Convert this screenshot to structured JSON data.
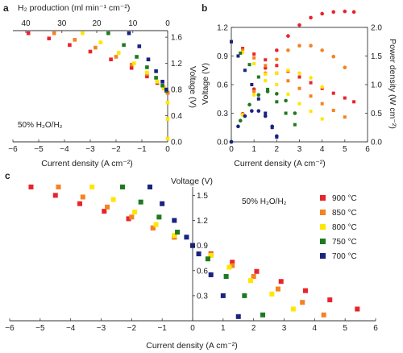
{
  "chart_data": [
    {
      "panel": "a",
      "type": "scatter",
      "note": "50% H₂O/H₂",
      "xlabel": "Current density (A cm⁻²)",
      "ylabel": "Voltage (V)",
      "top_xlabel": "H₂ production (ml min⁻¹ cm⁻²)",
      "xlim": [
        -6,
        0
      ],
      "ylim": [
        0,
        1.7
      ],
      "xticks": [
        "−6",
        "−5",
        "−4",
        "−3",
        "−2",
        "−1",
        "0"
      ],
      "yticks": [
        "0.0",
        "0.4",
        "0.8",
        "1.2",
        "1.6"
      ],
      "top_ticks": [
        "40",
        "30",
        "20",
        "10",
        "0"
      ],
      "series": [
        {
          "name": "900 °C",
          "color": "#e8242b",
          "x": [
            -5.4,
            -4.6,
            -3.8,
            -3.0,
            -2.2,
            -1.4,
            -0.8,
            -0.4,
            -0.15,
            0.0
          ],
          "y": [
            1.66,
            1.58,
            1.48,
            1.38,
            1.26,
            1.13,
            1.0,
            0.9,
            0.82,
            0.75
          ]
        },
        {
          "name": "850 °C",
          "color": "#f58220",
          "x": [
            -4.4,
            -3.6,
            -2.8,
            -2.0,
            -1.4,
            -0.8,
            -0.4,
            -0.15,
            0.0
          ],
          "y": [
            1.66,
            1.56,
            1.44,
            1.3,
            1.18,
            1.04,
            0.92,
            0.83,
            0.75
          ]
        },
        {
          "name": "800 °C",
          "color": "#ffe600",
          "x": [
            -3.3,
            -2.6,
            -1.9,
            -1.3,
            -0.8,
            -0.4,
            -0.15,
            0.0,
            0.0,
            0.0
          ],
          "y": [
            1.66,
            1.52,
            1.36,
            1.2,
            1.06,
            0.92,
            0.82,
            0.6,
            0.35,
            0.05
          ]
        },
        {
          "name": "750 °C",
          "color": "#1f7a1f",
          "x": [
            -2.3,
            -1.7,
            -1.2,
            -0.8,
            -0.45,
            -0.2,
            -0.05
          ],
          "y": [
            1.66,
            1.48,
            1.3,
            1.14,
            0.98,
            0.86,
            0.78
          ]
        },
        {
          "name": "700 °C",
          "color": "#1a237e",
          "x": [
            -1.5,
            -1.1,
            -0.75,
            -0.45,
            -0.2,
            -0.05
          ],
          "y": [
            1.66,
            1.46,
            1.26,
            1.08,
            0.92,
            0.8
          ]
        }
      ]
    },
    {
      "panel": "b",
      "type": "scatter",
      "xlabel": "Current density (A cm⁻²)",
      "ylabel": "Voltage (V)",
      "y2label": "Power density (W cm⁻²)",
      "xlim": [
        0,
        6
      ],
      "ylim": [
        0,
        1.2
      ],
      "y2lim": [
        0,
        2.0
      ],
      "xticks": [
        "0",
        "1",
        "2",
        "3",
        "4",
        "5",
        "6"
      ],
      "yticks": [
        "0.0",
        "0.3",
        "0.6",
        "0.9",
        "1.2"
      ],
      "y2ticks": [
        "0.0",
        "0.5",
        "1.0",
        "1.5",
        "2.0"
      ],
      "series": [
        {
          "name": "900 °C",
          "color": "#e8242b",
          "x": [
            0,
            0.5,
            1,
            1.5,
            2,
            2.5,
            3,
            3.5,
            4,
            4.5,
            5,
            5.4
          ],
          "voltage": [
            1.05,
            0.98,
            0.92,
            0.86,
            0.8,
            0.74,
            0.68,
            0.62,
            0.56,
            0.51,
            0.46,
            0.42
          ],
          "power": [
            0,
            0.49,
            0.92,
            1.29,
            1.6,
            1.85,
            2.04,
            2.17,
            2.24,
            2.27,
            2.3,
            2.27
          ]
        },
        {
          "name": "850 °C",
          "color": "#f58220",
          "x": [
            0,
            0.5,
            1,
            1.5,
            2,
            2.5,
            3,
            3.5,
            4,
            4.5,
            5
          ],
          "voltage": [
            1.05,
            0.96,
            0.88,
            0.8,
            0.72,
            0.64,
            0.56,
            0.48,
            0.4,
            0.33,
            0.26
          ],
          "power": [
            0,
            0.48,
            0.88,
            1.2,
            1.44,
            1.6,
            1.68,
            1.68,
            1.6,
            1.49,
            1.3
          ]
        },
        {
          "name": "800 °C",
          "color": "#ffe600",
          "x": [
            0,
            0.5,
            1,
            1.5,
            2,
            2.5,
            3,
            3.5,
            4
          ],
          "voltage": [
            1.05,
            0.94,
            0.82,
            0.71,
            0.6,
            0.5,
            0.4,
            0.32,
            0.24
          ],
          "power": [
            0,
            0.47,
            0.82,
            1.07,
            1.2,
            1.25,
            1.2,
            1.12,
            0.96
          ]
        },
        {
          "name": "750 °C",
          "color": "#1f7a1f",
          "x": [
            0,
            0.4,
            0.8,
            1.2,
            1.6,
            2,
            2.4,
            2.8
          ],
          "voltage": [
            1.05,
            0.93,
            0.81,
            0.68,
            0.55,
            0.42,
            0.3,
            0.18
          ],
          "power": [
            0,
            0.37,
            0.65,
            0.82,
            0.88,
            0.84,
            0.72,
            0.5
          ]
        },
        {
          "name": "700 °C",
          "color": "#1a237e",
          "x": [
            0,
            0.3,
            0.6,
            0.9,
            1.2,
            1.5,
            1.8,
            2.0
          ],
          "voltage": [
            1.05,
            0.9,
            0.75,
            0.6,
            0.45,
            0.3,
            0.15,
            0.05
          ],
          "power": [
            0,
            0.27,
            0.45,
            0.54,
            0.54,
            0.45,
            0.27,
            0.1
          ]
        }
      ]
    },
    {
      "panel": "c",
      "type": "scatter",
      "note": "50% H₂O/H₂",
      "xlabel": "Current density (A cm⁻²)",
      "ylabel": "Voltage (V)",
      "xlim": [
        -6,
        6
      ],
      "ylim": [
        0,
        1.6
      ],
      "xticks": [
        "−6",
        "−5",
        "−4",
        "−3",
        "−2",
        "−1",
        "0",
        "1",
        "2",
        "3",
        "4",
        "5",
        "6"
      ],
      "yticks": [
        "0.3",
        "0.6",
        "0.9",
        "1.2",
        "1.5"
      ],
      "legend": {
        "placement": "top-right"
      },
      "series": [
        {
          "name": "900 °C",
          "color": "#e8242b",
          "x": [
            -5.3,
            -4.5,
            -3.7,
            -2.9,
            -2.1,
            -1.3,
            -0.6,
            0,
            0.6,
            1.3,
            2.1,
            2.9,
            3.7,
            4.5,
            5.4
          ],
          "y": [
            1.6,
            1.5,
            1.4,
            1.31,
            1.22,
            1.11,
            1.0,
            0.9,
            0.8,
            0.7,
            0.59,
            0.47,
            0.36,
            0.25,
            0.14
          ]
        },
        {
          "name": "850 °C",
          "color": "#f58220",
          "x": [
            -4.4,
            -3.6,
            -2.8,
            -2.0,
            -1.3,
            -0.6,
            0,
            0.6,
            1.3,
            2.0,
            2.8,
            3.6,
            4.3
          ],
          "y": [
            1.6,
            1.48,
            1.36,
            1.24,
            1.11,
            1.0,
            0.9,
            0.79,
            0.66,
            0.53,
            0.38,
            0.22,
            0.07
          ]
        },
        {
          "name": "800 °C",
          "color": "#ffe600",
          "x": [
            -3.3,
            -2.6,
            -1.9,
            -1.2,
            -0.6,
            0,
            0.6,
            1.2,
            1.9,
            2.6,
            3.3
          ],
          "y": [
            1.6,
            1.45,
            1.3,
            1.15,
            1.02,
            0.9,
            0.78,
            0.64,
            0.48,
            0.32,
            0.14
          ]
        },
        {
          "name": "750 °C",
          "color": "#1f7a1f",
          "x": [
            -2.3,
            -1.7,
            -1.1,
            -0.5,
            0,
            0.5,
            1.1,
            1.7,
            2.3
          ],
          "y": [
            1.6,
            1.42,
            1.24,
            1.06,
            0.9,
            0.74,
            0.53,
            0.3,
            0.07
          ]
        },
        {
          "name": "700 °C",
          "color": "#1a237e",
          "x": [
            -1.4,
            -1.0,
            -0.6,
            -0.2,
            0,
            0.2,
            0.6,
            1.0,
            1.5
          ],
          "y": [
            1.6,
            1.4,
            1.2,
            1.0,
            0.9,
            0.8,
            0.55,
            0.3,
            0.05
          ]
        }
      ]
    }
  ]
}
